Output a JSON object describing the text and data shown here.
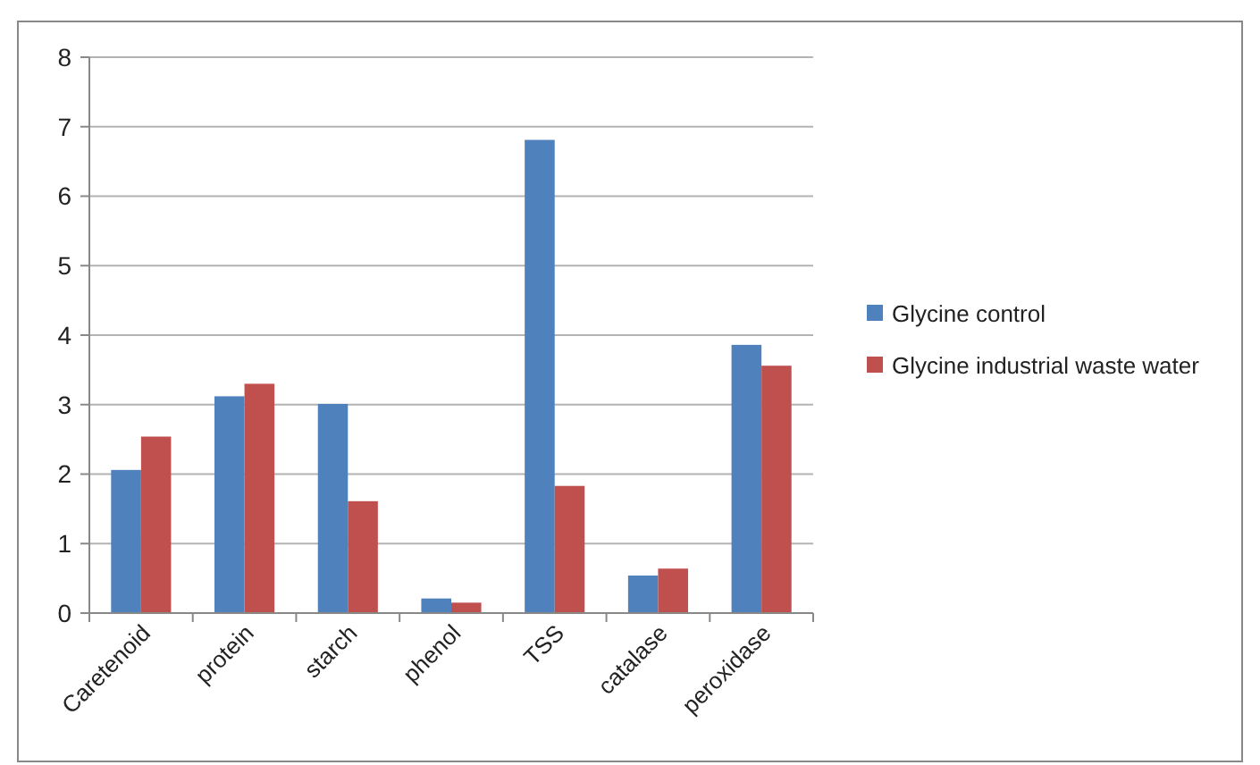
{
  "chart_data": {
    "type": "bar",
    "categories": [
      "Caretenoid",
      "protein",
      "starch",
      "phenol",
      "TSS",
      "catalase",
      "peroxidase"
    ],
    "series": [
      {
        "name": "Glycine control",
        "color": "#4f81bd",
        "values": [
          2.06,
          3.12,
          3.01,
          0.21,
          6.81,
          0.54,
          3.86
        ]
      },
      {
        "name": "Glycine industrial waste water",
        "color": "#c0504d",
        "values": [
          2.54,
          3.3,
          1.61,
          0.15,
          1.83,
          0.64,
          3.56
        ]
      }
    ],
    "ylim": [
      0,
      8
    ],
    "yticks": [
      0,
      1,
      2,
      3,
      4,
      5,
      6,
      7,
      8
    ],
    "grid": "y",
    "legend": "right"
  }
}
